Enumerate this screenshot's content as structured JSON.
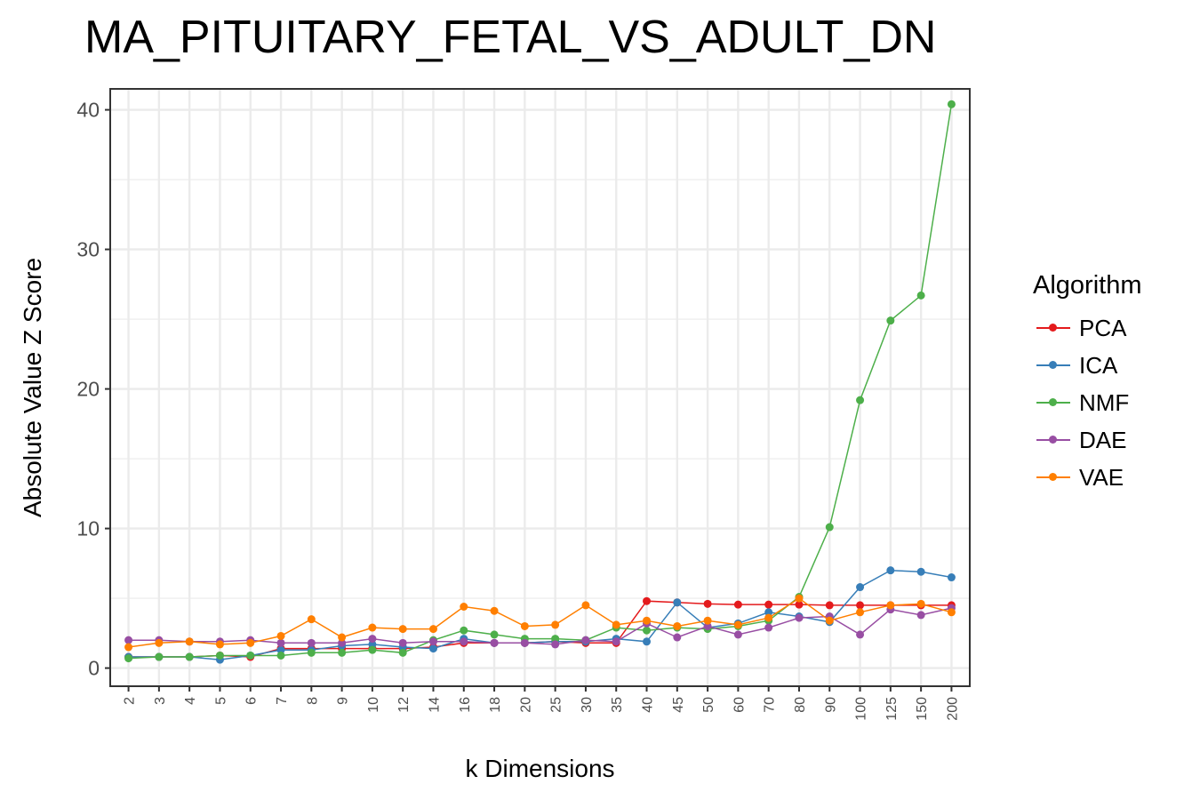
{
  "chart_data": {
    "type": "line",
    "title": "MA_PITUITARY_FETAL_VS_ADULT_DN",
    "xlabel": "k Dimensions",
    "ylabel": "Absolute Value Z Score",
    "legend_title": "Algorithm",
    "legend_position": "right",
    "grid": true,
    "categories": [
      "2",
      "3",
      "4",
      "5",
      "6",
      "7",
      "8",
      "9",
      "10",
      "12",
      "14",
      "16",
      "18",
      "20",
      "25",
      "30",
      "35",
      "40",
      "45",
      "50",
      "60",
      "70",
      "80",
      "90",
      "100",
      "125",
      "150",
      "200"
    ],
    "yticks": [
      0,
      10,
      20,
      30,
      40
    ],
    "ylim": [
      -1.3,
      41.5
    ],
    "series": [
      {
        "name": "PCA",
        "color": "#e41a1c",
        "values": [
          0.8,
          0.8,
          0.8,
          0.9,
          0.8,
          1.4,
          1.4,
          1.4,
          1.4,
          1.4,
          1.5,
          1.8,
          1.8,
          1.8,
          1.9,
          1.8,
          1.8,
          4.8,
          4.7,
          4.6,
          4.55,
          4.55,
          4.55,
          4.5,
          4.5,
          4.5,
          4.5,
          4.5
        ]
      },
      {
        "name": "ICA",
        "color": "#377eb8",
        "values": [
          0.8,
          0.8,
          0.8,
          0.6,
          0.9,
          1.3,
          1.3,
          1.6,
          1.7,
          1.5,
          1.4,
          2.1,
          1.8,
          1.8,
          1.9,
          1.9,
          2.1,
          1.9,
          4.7,
          2.9,
          3.2,
          4.0,
          3.7,
          3.3,
          5.8,
          7.0,
          6.9,
          6.5
        ]
      },
      {
        "name": "NMF",
        "color": "#4daf4a",
        "values": [
          0.7,
          0.8,
          0.8,
          0.9,
          0.9,
          0.9,
          1.1,
          1.1,
          1.3,
          1.1,
          2.0,
          2.7,
          2.4,
          2.1,
          2.1,
          2.0,
          2.9,
          2.7,
          2.9,
          2.8,
          3.0,
          3.4,
          5.1,
          10.1,
          19.2,
          24.9,
          26.7,
          40.4
        ]
      },
      {
        "name": "DAE",
        "color": "#984ea3",
        "values": [
          2.0,
          2.0,
          1.9,
          1.9,
          2.0,
          1.8,
          1.8,
          1.8,
          2.1,
          1.8,
          1.9,
          1.9,
          1.8,
          1.8,
          1.7,
          2.0,
          1.9,
          3.2,
          2.2,
          3.0,
          2.4,
          2.9,
          3.6,
          3.7,
          2.4,
          4.2,
          3.8,
          4.3
        ]
      },
      {
        "name": "VAE",
        "color": "#ff7f00",
        "values": [
          1.5,
          1.8,
          1.9,
          1.7,
          1.8,
          2.3,
          3.5,
          2.2,
          2.9,
          2.8,
          2.8,
          4.4,
          4.1,
          3.0,
          3.1,
          4.5,
          3.1,
          3.4,
          3.0,
          3.4,
          3.1,
          3.6,
          5.0,
          3.4,
          4.0,
          4.5,
          4.6,
          4.0
        ]
      }
    ]
  }
}
